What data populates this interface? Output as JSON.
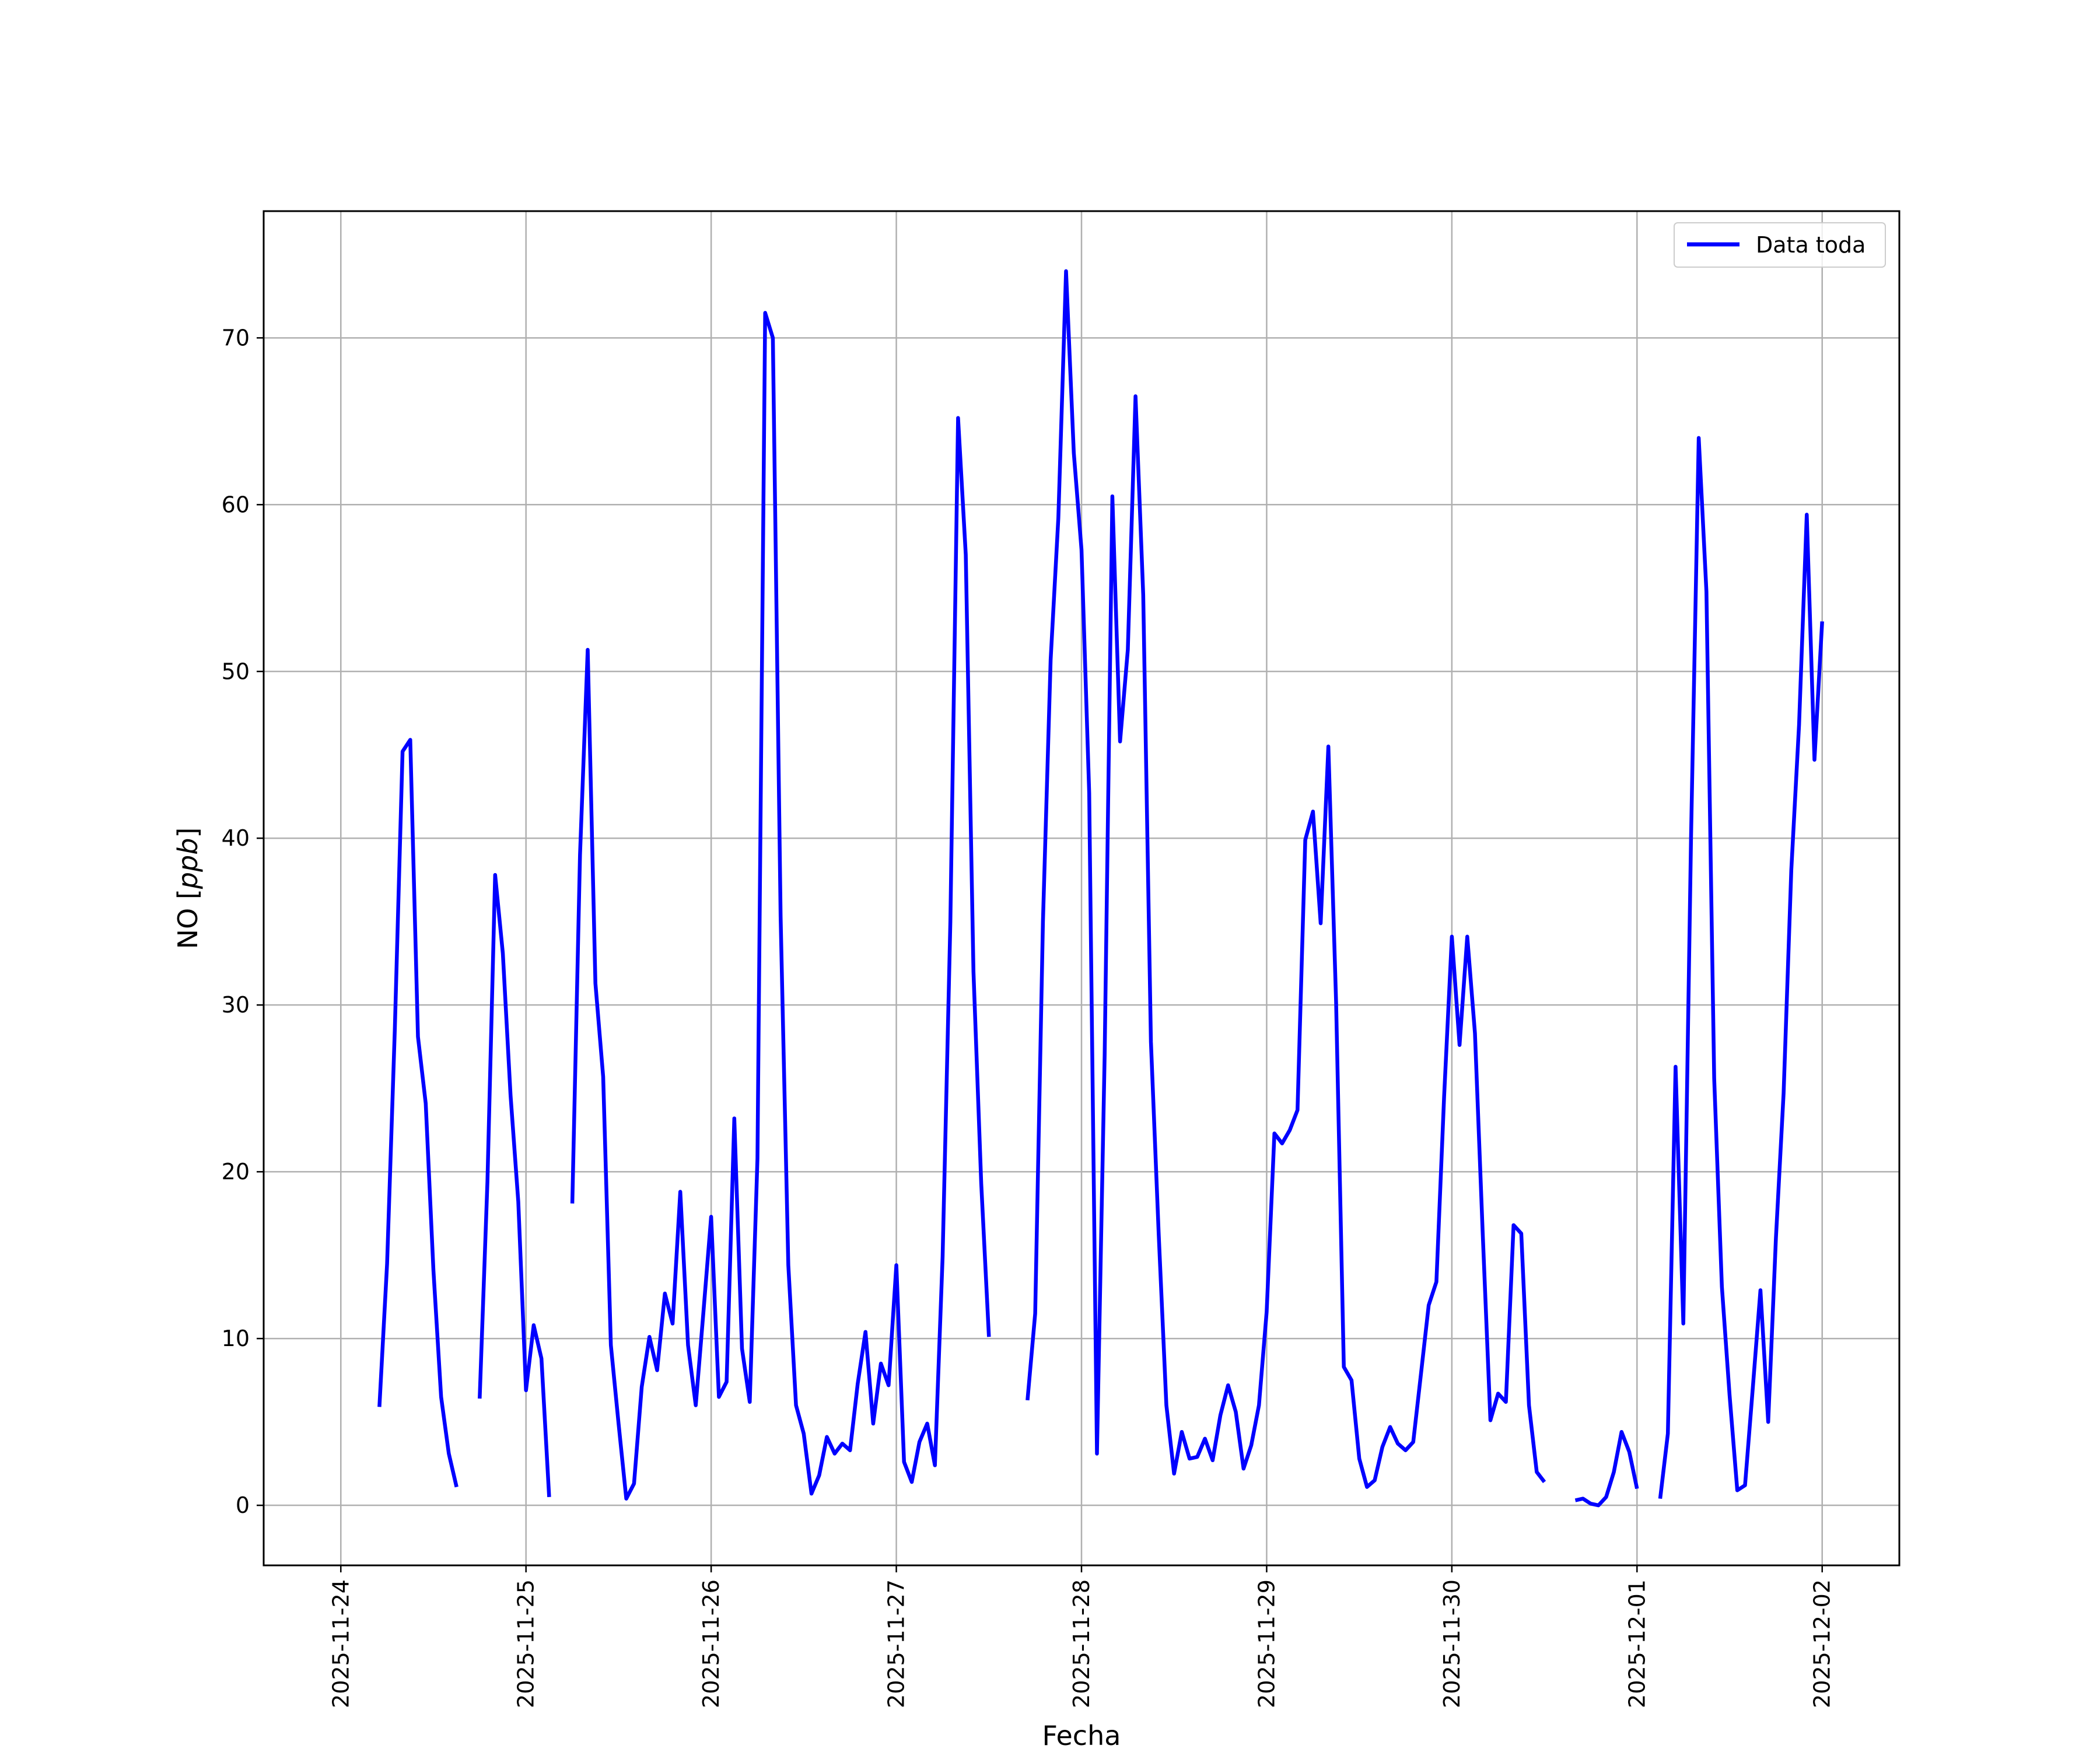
{
  "chart_data": {
    "type": "line",
    "title": "",
    "xlabel": "Fecha",
    "ylabel_prefix": "NO [",
    "ylabel_unit": "ppb",
    "ylabel_suffix": "]",
    "x_type": "datetime",
    "xlim": [
      "2025-11-23 14:00",
      "2025-12-02 10:00"
    ],
    "ylim": [
      -3.6,
      77.6
    ],
    "grid": true,
    "legend_position": "top-right",
    "x_ticks": [
      "2025-11-24",
      "2025-11-25",
      "2025-11-26",
      "2025-11-27",
      "2025-11-28",
      "2025-11-29",
      "2025-11-30",
      "2025-12-01",
      "2025-12-02"
    ],
    "y_ticks": [
      0,
      10,
      20,
      30,
      40,
      50,
      60,
      70
    ],
    "series": [
      {
        "name": "Data toda",
        "color": "#0000ff",
        "segments": [
          [
            [
              "2025-11-24 05:00",
              5.9
            ],
            [
              "2025-11-24 06:00",
              14.5
            ],
            [
              "2025-11-24 07:00",
              28.5
            ],
            [
              "2025-11-24 08:00",
              45.2
            ],
            [
              "2025-11-24 09:00",
              45.9
            ],
            [
              "2025-11-24 10:00",
              28.1
            ],
            [
              "2025-11-24 11:00",
              24.1
            ],
            [
              "2025-11-24 12:00",
              14.1
            ],
            [
              "2025-11-24 13:00",
              6.5
            ],
            [
              "2025-11-24 14:00",
              3.1
            ],
            [
              "2025-11-24 15:00",
              1.1
            ]
          ],
          [
            [
              "2025-11-24 18:00",
              6.4
            ],
            [
              "2025-11-24 19:00",
              19.4
            ],
            [
              "2025-11-24 20:00",
              37.8
            ],
            [
              "2025-11-24 21:00",
              33.1
            ],
            [
              "2025-11-24 22:00",
              24.6
            ],
            [
              "2025-11-24 23:00",
              18.2
            ],
            [
              "2025-11-25 00:00",
              6.9
            ],
            [
              "2025-11-25 01:00",
              10.8
            ],
            [
              "2025-11-25 02:00",
              8.8
            ],
            [
              "2025-11-25 03:00",
              0.5
            ]
          ],
          [
            [
              "2025-11-25 06:00",
              18.1
            ],
            [
              "2025-11-25 07:00",
              39.0
            ],
            [
              "2025-11-25 08:00",
              51.3
            ],
            [
              "2025-11-25 09:00",
              31.3
            ],
            [
              "2025-11-25 10:00",
              25.7
            ],
            [
              "2025-11-25 11:00",
              9.6
            ],
            [
              "2025-11-25 12:00",
              4.9
            ],
            [
              "2025-11-25 13:00",
              0.4
            ],
            [
              "2025-11-25 14:00",
              1.3
            ],
            [
              "2025-11-25 15:00",
              7.1
            ],
            [
              "2025-11-25 16:00",
              10.1
            ],
            [
              "2025-11-25 17:00",
              8.1
            ],
            [
              "2025-11-25 18:00",
              12.7
            ],
            [
              "2025-11-25 19:00",
              10.9
            ],
            [
              "2025-11-25 20:00",
              18.8
            ],
            [
              "2025-11-25 21:00",
              9.6
            ],
            [
              "2025-11-25 22:00",
              6.0
            ],
            [
              "2025-11-25 23:00",
              11.6
            ],
            [
              "2025-11-26 00:00",
              17.3
            ],
            [
              "2025-11-26 01:00",
              6.5
            ],
            [
              "2025-11-26 02:00",
              7.4
            ],
            [
              "2025-11-26 03:00",
              23.2
            ],
            [
              "2025-11-26 04:00",
              9.4
            ],
            [
              "2025-11-26 05:00",
              6.2
            ],
            [
              "2025-11-26 06:00",
              20.8
            ],
            [
              "2025-11-26 07:00",
              71.5
            ],
            [
              "2025-11-26 08:00",
              70.0
            ],
            [
              "2025-11-26 09:00",
              35.3
            ],
            [
              "2025-11-26 10:00",
              14.4
            ],
            [
              "2025-11-26 11:00",
              6.0
            ],
            [
              "2025-11-26 12:00",
              4.3
            ],
            [
              "2025-11-26 13:00",
              0.7
            ],
            [
              "2025-11-26 14:00",
              1.8
            ],
            [
              "2025-11-26 15:00",
              4.1
            ],
            [
              "2025-11-26 16:00",
              3.1
            ],
            [
              "2025-11-26 17:00",
              3.7
            ],
            [
              "2025-11-26 18:00",
              3.3
            ],
            [
              "2025-11-26 19:00",
              7.3
            ],
            [
              "2025-11-26 20:00",
              10.4
            ],
            [
              "2025-11-26 21:00",
              4.9
            ],
            [
              "2025-11-26 22:00",
              8.5
            ],
            [
              "2025-11-26 23:00",
              7.2
            ],
            [
              "2025-11-27 00:00",
              14.4
            ],
            [
              "2025-11-27 01:00",
              2.6
            ],
            [
              "2025-11-27 02:00",
              1.4
            ],
            [
              "2025-11-27 03:00",
              3.8
            ],
            [
              "2025-11-27 04:00",
              4.9
            ],
            [
              "2025-11-27 05:00",
              2.4
            ],
            [
              "2025-11-27 06:00",
              14.9
            ],
            [
              "2025-11-27 07:00",
              35.0
            ],
            [
              "2025-11-27 08:00",
              65.2
            ],
            [
              "2025-11-27 09:00",
              57.0
            ],
            [
              "2025-11-27 10:00",
              32.0
            ],
            [
              "2025-11-27 11:00",
              19.3
            ],
            [
              "2025-11-27 12:00",
              10.1
            ]
          ],
          [
            [
              "2025-11-27 17:00",
              6.3
            ],
            [
              "2025-11-27 18:00",
              11.5
            ],
            [
              "2025-11-27 19:00",
              35.0
            ],
            [
              "2025-11-27 20:00",
              50.7
            ],
            [
              "2025-11-27 21:00",
              59.2
            ],
            [
              "2025-11-27 22:00",
              74.0
            ],
            [
              "2025-11-27 23:00",
              63.1
            ],
            [
              "2025-11-28 00:00",
              57.3
            ],
            [
              "2025-11-28 01:00",
              42.7
            ],
            [
              "2025-11-28 02:00",
              3.1
            ],
            [
              "2025-11-28 03:00",
              27.0
            ],
            [
              "2025-11-28 04:00",
              60.5
            ],
            [
              "2025-11-28 05:00",
              45.8
            ],
            [
              "2025-11-28 06:00",
              51.3
            ],
            [
              "2025-11-28 07:00",
              66.5
            ],
            [
              "2025-11-28 08:00",
              54.6
            ],
            [
              "2025-11-28 09:00",
              27.8
            ],
            [
              "2025-11-28 10:00",
              16.3
            ],
            [
              "2025-11-28 11:00",
              6.0
            ],
            [
              "2025-11-28 12:00",
              1.9
            ],
            [
              "2025-11-28 13:00",
              4.4
            ],
            [
              "2025-11-28 14:00",
              2.8
            ],
            [
              "2025-11-28 15:00",
              2.9
            ],
            [
              "2025-11-28 16:00",
              4.0
            ],
            [
              "2025-11-28 17:00",
              2.7
            ],
            [
              "2025-11-28 18:00",
              5.4
            ],
            [
              "2025-11-28 19:00",
              7.2
            ],
            [
              "2025-11-28 20:00",
              5.6
            ],
            [
              "2025-11-28 21:00",
              2.2
            ],
            [
              "2025-11-28 22:00",
              3.6
            ],
            [
              "2025-11-28 23:00",
              6.0
            ],
            [
              "2025-11-29 00:00",
              11.6
            ],
            [
              "2025-11-29 01:00",
              22.3
            ],
            [
              "2025-11-29 02:00",
              21.7
            ],
            [
              "2025-11-29 03:00",
              22.5
            ],
            [
              "2025-11-29 04:00",
              23.7
            ],
            [
              "2025-11-29 05:00",
              39.9
            ],
            [
              "2025-11-29 06:00",
              41.6
            ],
            [
              "2025-11-29 07:00",
              34.9
            ],
            [
              "2025-11-29 08:00",
              45.5
            ],
            [
              "2025-11-29 09:00",
              30.1
            ],
            [
              "2025-11-29 10:00",
              8.3
            ],
            [
              "2025-11-29 11:00",
              7.5
            ],
            [
              "2025-11-29 12:00",
              2.8
            ],
            [
              "2025-11-29 13:00",
              1.1
            ],
            [
              "2025-11-29 14:00",
              1.5
            ],
            [
              "2025-11-29 15:00",
              3.5
            ],
            [
              "2025-11-29 16:00",
              4.7
            ],
            [
              "2025-11-29 17:00",
              3.7
            ],
            [
              "2025-11-29 18:00",
              3.3
            ],
            [
              "2025-11-29 19:00",
              3.8
            ],
            [
              "2025-11-29 20:00",
              7.9
            ],
            [
              "2025-11-29 21:00",
              12.0
            ],
            [
              "2025-11-29 22:00",
              13.4
            ],
            [
              "2025-11-29 23:00",
              24.5
            ],
            [
              "2025-11-30 00:00",
              34.1
            ],
            [
              "2025-11-30 01:00",
              27.6
            ],
            [
              "2025-11-30 02:00",
              34.1
            ],
            [
              "2025-11-30 03:00",
              28.3
            ],
            [
              "2025-11-30 04:00",
              16.3
            ],
            [
              "2025-11-30 05:00",
              5.1
            ],
            [
              "2025-11-30 06:00",
              6.7
            ],
            [
              "2025-11-30 07:00",
              6.2
            ],
            [
              "2025-11-30 08:00",
              16.8
            ],
            [
              "2025-11-30 09:00",
              16.3
            ],
            [
              "2025-11-30 10:00",
              6.0
            ],
            [
              "2025-11-30 11:00",
              2.0
            ],
            [
              "2025-11-30 12:00",
              1.4
            ]
          ],
          [
            [
              "2025-11-30 16:00",
              0.3
            ],
            [
              "2025-11-30 17:00",
              0.4
            ],
            [
              "2025-11-30 18:00",
              0.1
            ],
            [
              "2025-11-30 19:00",
              0.0
            ],
            [
              "2025-11-30 20:00",
              0.5
            ],
            [
              "2025-11-30 21:00",
              2.0
            ],
            [
              "2025-11-30 22:00",
              4.4
            ],
            [
              "2025-11-30 23:00",
              3.2
            ],
            [
              "2025-12-01 00:00",
              1.0
            ]
          ],
          [
            [
              "2025-12-01 03:00",
              0.4
            ],
            [
              "2025-12-01 04:00",
              4.3
            ],
            [
              "2025-12-01 05:00",
              26.3
            ],
            [
              "2025-12-01 06:00",
              10.9
            ],
            [
              "2025-12-01 07:00",
              40.0
            ],
            [
              "2025-12-01 08:00",
              64.0
            ],
            [
              "2025-12-01 09:00",
              54.8
            ],
            [
              "2025-12-01 10:00",
              25.6
            ],
            [
              "2025-12-01 11:00",
              13.1
            ],
            [
              "2025-12-01 12:00",
              6.6
            ],
            [
              "2025-12-01 13:00",
              0.9
            ],
            [
              "2025-12-01 14:00",
              1.2
            ],
            [
              "2025-12-01 15:00",
              7.0
            ],
            [
              "2025-12-01 16:00",
              12.9
            ],
            [
              "2025-12-01 17:00",
              5.0
            ],
            [
              "2025-12-01 18:00",
              16.0
            ],
            [
              "2025-12-01 19:00",
              24.7
            ],
            [
              "2025-12-01 20:00",
              38.1
            ],
            [
              "2025-12-01 21:00",
              46.8
            ],
            [
              "2025-12-01 22:00",
              59.4
            ],
            [
              "2025-12-01 23:00",
              44.7
            ],
            [
              "2025-12-02 00:00",
              53.0
            ]
          ]
        ]
      }
    ]
  }
}
